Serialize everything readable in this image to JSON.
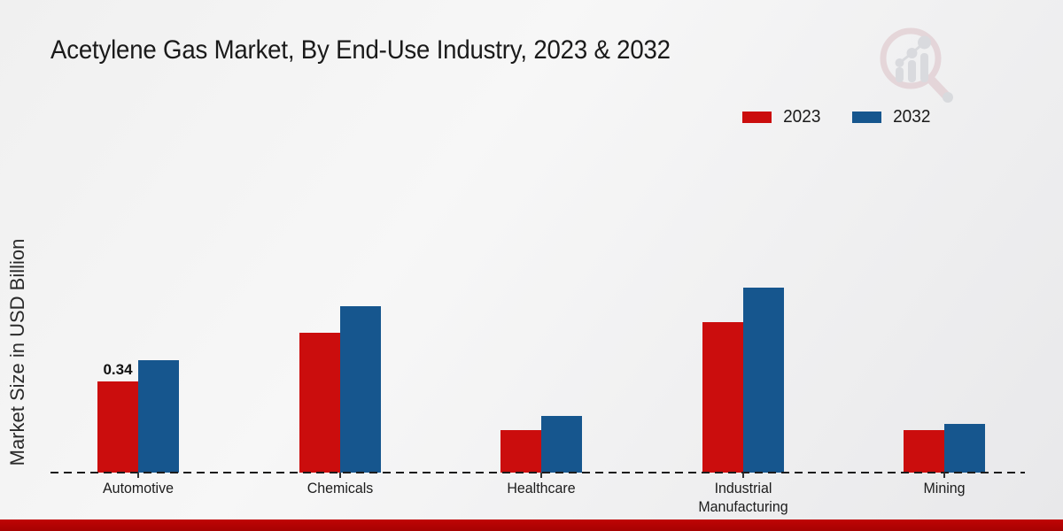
{
  "page": {
    "title": "Acetylene Gas Market, By End-Use Industry, 2023 & 2032"
  },
  "watermark": {
    "name": "market-research-magnifier-logo",
    "ring_color": "#dcc0c6",
    "bars_color": "#c7c9cf"
  },
  "footer": {
    "bar_color": "#c00404"
  },
  "chart_data": {
    "type": "bar",
    "title": "Acetylene Gas Market, By End-Use Industry, 2023 & 2032",
    "xlabel": "",
    "ylabel": "Market Size in USD Billion",
    "categories": [
      "Automotive",
      "Chemicals",
      "Healthcare",
      "Industrial Manufacturing",
      "Mining"
    ],
    "series": [
      {
        "name": "2023",
        "color": "#cb0d0d",
        "values": [
          0.34,
          0.52,
          0.16,
          0.56,
          0.16
        ]
      },
      {
        "name": "2032",
        "color": "#16568e",
        "values": [
          0.42,
          0.62,
          0.21,
          0.69,
          0.18
        ]
      }
    ],
    "data_labels": [
      {
        "series_index": 0,
        "category_index": 0,
        "text": "0.34"
      }
    ],
    "ylim": [
      0,
      0.75
    ],
    "grid": false,
    "y_axis_ticks_visible": false,
    "legend_position": "top-right",
    "baseline_style": "dashed"
  }
}
